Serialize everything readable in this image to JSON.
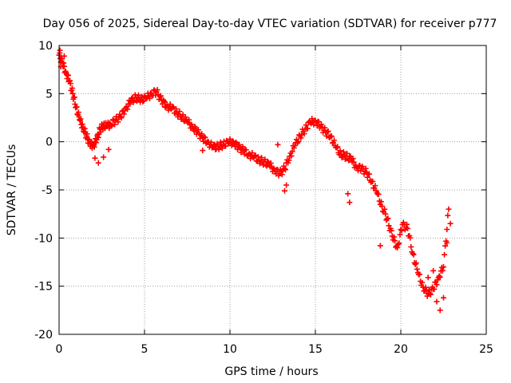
{
  "chart_data": {
    "type": "scatter",
    "title": "Day 056 of 2025, Sidereal Day-to-day VTEC variation (SDTVAR) for receiver p777",
    "xlabel": "GPS time / hours",
    "ylabel": "SDTVAR / TECUs",
    "xlim": [
      0,
      25
    ],
    "ylim": [
      -20,
      10
    ],
    "xticks": [
      0,
      5,
      10,
      15,
      20,
      25
    ],
    "yticks": [
      -20,
      -15,
      -10,
      -5,
      0,
      5,
      10
    ],
    "grid": true,
    "marker": "+",
    "series": [
      {
        "name": "SDTVAR p777",
        "color": "#ff0000",
        "x": [
          0.0,
          0.2,
          0.4,
          0.6,
          0.8,
          1.0,
          1.2,
          1.4,
          1.6,
          1.8,
          2.0,
          2.2,
          2.4,
          2.6,
          2.8,
          3.0,
          3.3,
          3.6,
          3.9,
          4.2,
          4.5,
          4.8,
          5.1,
          5.4,
          5.7,
          6.0,
          6.3,
          6.6,
          6.9,
          7.2,
          7.5,
          7.8,
          8.1,
          8.4,
          8.7,
          9.0,
          9.3,
          9.6,
          9.9,
          10.2,
          10.5,
          10.8,
          11.1,
          11.4,
          11.7,
          12.0,
          12.3,
          12.6,
          12.9,
          13.2,
          13.5,
          13.8,
          14.1,
          14.4,
          14.7,
          15.0,
          15.3,
          15.6,
          15.9,
          16.2,
          16.5,
          16.8,
          17.1,
          17.4,
          17.7,
          18.0,
          18.3,
          18.6,
          18.9,
          19.2,
          19.5,
          19.8,
          20.1,
          20.4,
          20.7,
          21.0,
          21.3,
          21.6,
          21.9,
          22.2,
          22.5,
          22.8
        ],
        "y": [
          9.0,
          8.2,
          7.2,
          6.3,
          5.0,
          3.6,
          2.3,
          1.5,
          0.6,
          -0.2,
          -0.4,
          0.2,
          1.3,
          1.7,
          1.6,
          1.8,
          2.2,
          2.6,
          3.5,
          4.2,
          4.6,
          4.4,
          4.5,
          5.0,
          5.2,
          4.3,
          3.7,
          3.5,
          3.0,
          2.6,
          2.1,
          1.6,
          1.0,
          0.4,
          0.0,
          -0.6,
          -0.5,
          -0.3,
          -0.1,
          0.0,
          -0.6,
          -0.9,
          -1.3,
          -1.6,
          -1.9,
          -2.1,
          -2.4,
          -2.9,
          -3.3,
          -2.8,
          -1.5,
          -0.4,
          0.6,
          1.3,
          2.0,
          2.2,
          1.6,
          1.0,
          0.6,
          -0.6,
          -1.3,
          -1.5,
          -1.8,
          -2.6,
          -2.8,
          -3.2,
          -4.1,
          -5.3,
          -6.7,
          -8.0,
          -9.8,
          -11.0,
          -8.6,
          -9.0,
          -11.6,
          -13.6,
          -15.1,
          -15.8,
          -15.3,
          -14.1,
          -13.0,
          -7.0
        ],
        "extra_points": {
          "x": [
            2.1,
            2.3,
            2.6,
            2.9,
            0.05,
            0.3,
            0.1,
            6.2,
            8.4,
            12.8,
            13.2,
            13.3,
            16.9,
            17.0,
            18.8,
            21.6,
            21.9,
            22.1,
            22.3,
            22.5,
            22.7,
            22.9
          ],
          "y": [
            -1.7,
            -2.2,
            -1.6,
            -0.8,
            9.5,
            8.9,
            7.8,
            4.1,
            -0.9,
            -0.3,
            -5.1,
            -4.5,
            -5.4,
            -6.3,
            -10.8,
            -14.1,
            -13.4,
            -16.6,
            -17.5,
            -16.2,
            -10.5,
            -8.5
          ]
        }
      }
    ]
  }
}
